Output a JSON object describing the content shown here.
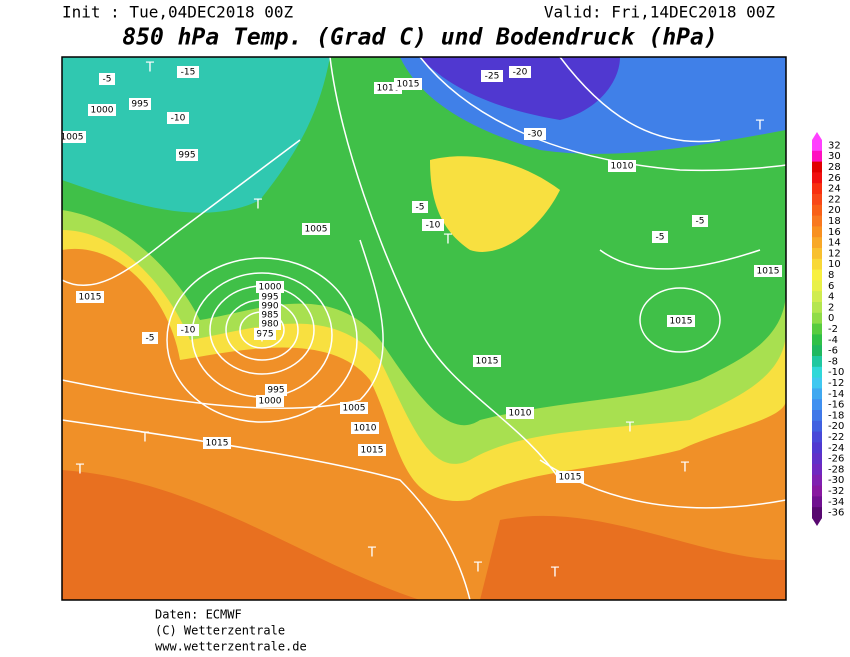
{
  "header": {
    "init": "Init : Tue,04DEC2018 00Z",
    "valid": "Valid: Fri,14DEC2018 00Z",
    "title": "850 hPa Temp. (Grad C) und Bodendruck (hPa)"
  },
  "colorbar": {
    "levels": [
      32,
      30,
      28,
      26,
      24,
      22,
      20,
      18,
      16,
      14,
      12,
      10,
      8,
      6,
      4,
      2,
      0,
      -2,
      -4,
      -6,
      -8,
      -10,
      -12,
      -14,
      -16,
      -18,
      -20,
      -22,
      -24,
      -26,
      -28,
      -30,
      -32,
      -34,
      -36
    ],
    "colors": [
      "#ff40ff",
      "#ff10c0",
      "#e00000",
      "#f01010",
      "#f83010",
      "#f84818",
      "#f86018",
      "#f87820",
      "#f89020",
      "#f8a828",
      "#f8c030",
      "#f8d838",
      "#f8f040",
      "#e8f048",
      "#d0ec50",
      "#b4e650",
      "#90dc48",
      "#58cc40",
      "#30c048",
      "#20b860",
      "#20c8a0",
      "#30d8d8",
      "#40c8f0",
      "#40a8f0",
      "#4090f0",
      "#4078e8",
      "#4060e0",
      "#4848d8",
      "#5038d0",
      "#6030c8",
      "#7028c0",
      "#8020b0",
      "#8818a0",
      "#701090",
      "#580870"
    ]
  },
  "map_labels": [
    "1000",
    "995",
    "1005",
    "-5",
    "-10",
    "-15",
    "995",
    "1015",
    "-5",
    "-10",
    "1000",
    "995",
    "990",
    "985",
    "980",
    "975",
    "995",
    "1000",
    "1005",
    "1010",
    "1015",
    "1015",
    "-10",
    "-5",
    "-25",
    "-20",
    "-30",
    "1010",
    "1015",
    "1015",
    "1015",
    "1010",
    "1015",
    "-5",
    "-5",
    "1005",
    "1010",
    "1015",
    "T",
    "T",
    "T",
    "T",
    "T",
    "T",
    "T",
    "T",
    "T",
    "T",
    "T",
    "T"
  ],
  "footer": {
    "source": "Daten: ECMWF",
    "copyright": "(C) Wetterzentrale",
    "url": "www.wetterzentrale.de"
  }
}
